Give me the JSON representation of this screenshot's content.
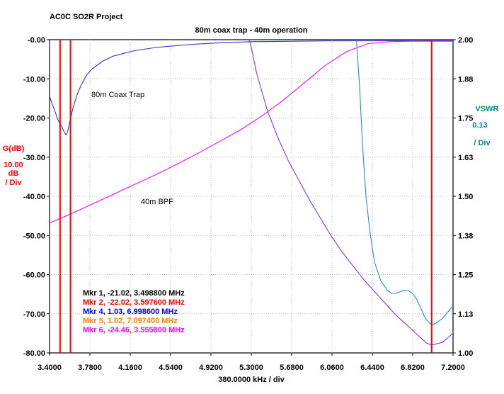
{
  "project": "AC0C SO2R Project",
  "chart_data": {
    "type": "line",
    "title": "80m coax trap - 40m operation",
    "xlabel": "380.0000 kHz / div",
    "x_ticks": [
      "3.4000",
      "3.7800",
      "4.1600",
      "4.5400",
      "4.9200",
      "5.3000",
      "5.6800",
      "6.0600",
      "6.4400",
      "6.8200",
      "7.2000"
    ],
    "xlim": [
      3.4,
      7.2
    ],
    "left_axis": {
      "label_lines": [
        "G(dB)",
        "10.00",
        "dB",
        "/ Div"
      ],
      "ticks": [
        "-0.00",
        "-10.00",
        "-20.00",
        "-30.00",
        "-40.00",
        "-50.00",
        "-60.00",
        "-70.00",
        "-80.00"
      ],
      "ylim": [
        -80,
        0
      ],
      "color": "#ff0000"
    },
    "right_axis": {
      "label_lines": [
        "VSWR",
        "0.13",
        "/ Div"
      ],
      "ticks": [
        "2.00",
        "1.88",
        "1.75",
        "1.63",
        "1.50",
        "1.38",
        "1.25",
        "1.13",
        "1.00"
      ],
      "ylim": [
        1.0,
        2.0
      ],
      "color": "#008b8b"
    },
    "annotations": [
      "80m Coax Trap",
      "40m BPF"
    ],
    "markers": [
      {
        "label": "Mkr 1, -21.02, 3.498800 MHz",
        "color": "#000000"
      },
      {
        "label": "Mkr 2, -22.02, 3.597600 MHz",
        "color": "#ff0000"
      },
      {
        "label": "Mkr 4, 1.03, 6.998600 MHz",
        "color": "#0000ff"
      },
      {
        "label": "Mkr 5, 1.02, 7.097400 MHz",
        "color": "#ff8000"
      },
      {
        "label": "Mkr 6, -24.46, 3.555800 MHz",
        "color": "#ff00ff"
      }
    ],
    "marker_lines_mhz": [
      3.4988,
      3.5976,
      6.9986
    ],
    "series": [
      {
        "axis": "left",
        "color": "#3333cc",
        "x": [
          3.4,
          3.42,
          3.44,
          3.46,
          3.48,
          3.5,
          3.52,
          3.54,
          3.556,
          3.57,
          3.59,
          3.62,
          3.66,
          3.7,
          3.75,
          3.8,
          3.9,
          4.0,
          4.2,
          4.4,
          4.6,
          4.8,
          5.0,
          5.3,
          6.0,
          7.2
        ],
        "y": [
          -14.5,
          -16,
          -17.5,
          -19,
          -20.5,
          -21.5,
          -22.5,
          -23.7,
          -24.3,
          -23.5,
          -21,
          -17.5,
          -14,
          -11.5,
          -9,
          -7.5,
          -5.5,
          -4.2,
          -2.8,
          -2,
          -1.5,
          -1.1,
          -0.8,
          -0.5,
          -0.3,
          -0.25
        ]
      },
      {
        "axis": "left",
        "color": "#ff00ff",
        "x": [
          3.4,
          3.6,
          3.8,
          4.0,
          4.2,
          4.4,
          4.6,
          4.8,
          5.0,
          5.2,
          5.4,
          5.6,
          5.8,
          6.0,
          6.2,
          6.4,
          6.6,
          6.8,
          7.0,
          7.2
        ],
        "y": [
          -46.8,
          -44.5,
          -42,
          -39.5,
          -37,
          -34.5,
          -31.8,
          -29,
          -26,
          -23,
          -19.5,
          -15.5,
          -11,
          -6.5,
          -3,
          -1,
          -0.5,
          -0.4,
          -0.4,
          -0.4
        ]
      },
      {
        "axis": "left",
        "color": "#8833ee",
        "x": [
          5.28,
          5.3,
          5.35,
          5.45,
          5.55,
          5.65,
          5.75,
          5.85,
          5.95,
          6.05,
          6.15,
          6.25,
          6.35,
          6.45,
          6.55,
          6.65,
          6.75,
          6.85,
          6.95,
          7.0,
          7.1,
          7.2
        ],
        "y": [
          0,
          -2,
          -8.5,
          -18,
          -25,
          -31,
          -36,
          -41,
          -45.5,
          -50,
          -54,
          -57.5,
          -61,
          -64,
          -67,
          -70,
          -72.5,
          -75,
          -77.5,
          -78,
          -77.3,
          -75
        ]
      },
      {
        "axis": "right",
        "color": "#1e90cc",
        "x": [
          6.29,
          6.32,
          6.35,
          6.38,
          6.42,
          6.46,
          6.52,
          6.58,
          6.62,
          6.66,
          6.7,
          6.74,
          6.78,
          6.82,
          6.86,
          6.9,
          6.94,
          6.98,
          7.0,
          7.04,
          7.1,
          7.15,
          7.2
        ],
        "y": [
          2.0,
          1.85,
          1.65,
          1.5,
          1.38,
          1.29,
          1.23,
          1.2,
          1.19,
          1.19,
          1.195,
          1.2,
          1.198,
          1.19,
          1.17,
          1.14,
          1.11,
          1.095,
          1.09,
          1.095,
          1.11,
          1.13,
          1.15
        ]
      }
    ]
  }
}
